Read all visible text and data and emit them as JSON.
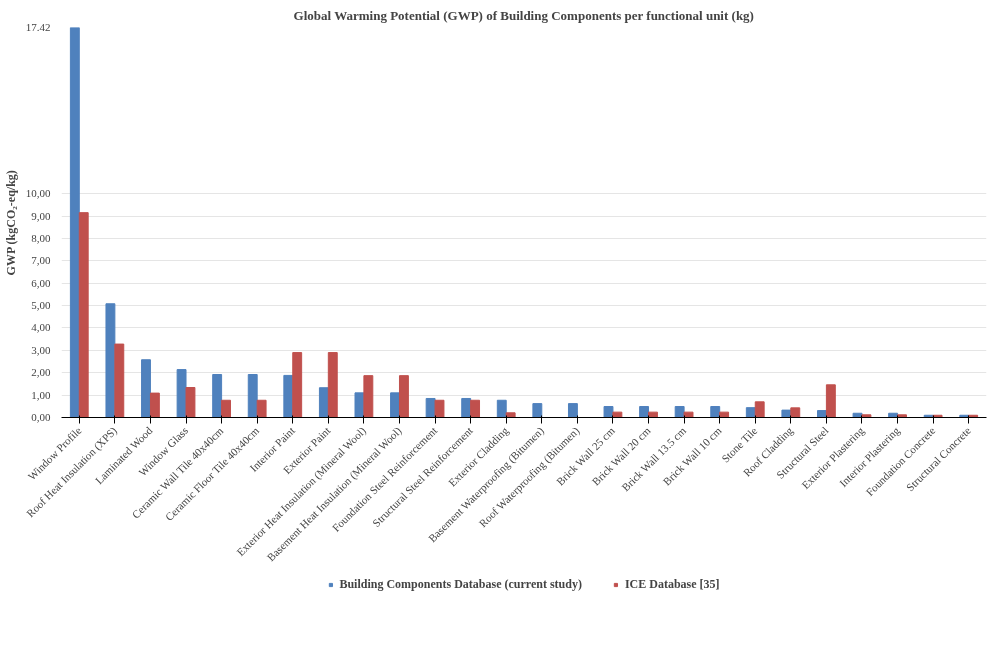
{
  "chart_data": {
    "type": "bar",
    "title": "Global Warming Potential (GWP) of Building Components per functional unit (kg)",
    "ylabel": "GWP (kgCO₂-eq/kg)",
    "categories": [
      "Window Profile",
      "Roof Heat Insulation (XPS)",
      "Laminated Wood",
      "Window Glass",
      "Ceramic Wall Tile 40x40cm",
      "Ceramic Floor Tile 40x40cm",
      "Interior Paint",
      "Exterior Paint",
      "Exterior Heat Insulation (Mineral Wool)",
      "Basement Heat Insulation (Mineral Wool)",
      "Foundation Steel Reinforcement",
      "Structural Steel Reinforcement",
      "Exterior Cladding",
      "Basement Waterproofing (Bitumen)",
      "Roof Waterproofing (Bitumen)",
      "Brick Wall 25 cm",
      "Brick Wall 20 cm",
      "Brick Wall 13.5 cm",
      "Brick Wall 10 cm",
      "Stone Tile",
      "Roof Cladding",
      "Structural Steel",
      "Exterior Plastering",
      "Interior Plastering",
      "Foundation Concrete",
      "Structural Concrete"
    ],
    "series": [
      {
        "name": "Building Components Database (current study)",
        "color": "#4f81bd",
        "values": [
          17.42,
          5.08,
          2.58,
          2.14,
          1.92,
          1.92,
          1.88,
          1.33,
          1.1,
          1.1,
          0.85,
          0.85,
          0.77,
          0.62,
          0.62,
          0.49,
          0.49,
          0.49,
          0.49,
          0.44,
          0.33,
          0.31,
          0.19,
          0.19,
          0.1,
          0.1
        ]
      },
      {
        "name": "ICE Database [35]",
        "color": "#c0504d",
        "values": [
          9.15,
          3.28,
          1.09,
          1.34,
          0.77,
          0.77,
          2.9,
          2.9,
          1.87,
          1.87,
          0.77,
          0.77,
          0.21,
          null,
          null,
          0.24,
          0.24,
          0.24,
          0.24,
          0.7,
          0.43,
          1.46,
          0.12,
          0.12,
          0.1,
          0.1
        ]
      }
    ],
    "ylim": [
      0,
      17.42
    ],
    "yticks": [
      {
        "value": 0,
        "label": "0,00"
      },
      {
        "value": 1,
        "label": "1,00"
      },
      {
        "value": 2,
        "label": "2,00"
      },
      {
        "value": 3,
        "label": "3,00"
      },
      {
        "value": 4,
        "label": "4,00"
      },
      {
        "value": 5,
        "label": "5,00"
      },
      {
        "value": 6,
        "label": "6,00"
      },
      {
        "value": 7,
        "label": "7,00"
      },
      {
        "value": 8,
        "label": "8,00"
      },
      {
        "value": 9,
        "label": "9,00"
      },
      {
        "value": 10,
        "label": "10,00"
      },
      17.42
    ],
    "grid": "y",
    "legend": "bottom"
  }
}
